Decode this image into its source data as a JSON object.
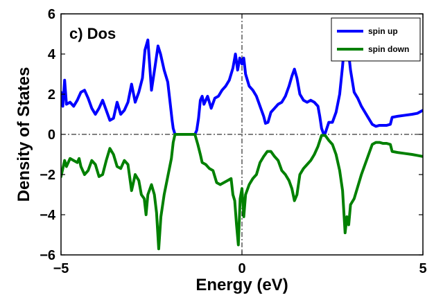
{
  "chart_data": {
    "type": "line",
    "title": "c) Dos",
    "xlabel": "Energy (eV)",
    "ylabel": "Density of States",
    "xlim": [
      -5,
      5
    ],
    "ylim": [
      -6,
      6
    ],
    "xticks": [
      -5,
      0,
      5
    ],
    "xtick_labels": [
      "−5",
      "0",
      "5"
    ],
    "yticks": [
      -6,
      -4,
      -2,
      0,
      2,
      4,
      6
    ],
    "ytick_labels": [
      "−6",
      "−4",
      "−2",
      "0",
      "2",
      "4",
      "6"
    ],
    "grid": false,
    "legend_position": "top-right",
    "reference_lines": {
      "horizontal": 0,
      "vertical": 0,
      "style": "dash-dot"
    },
    "series": [
      {
        "name": "spin up",
        "color": "#0000ff",
        "points": [
          [
            -5.0,
            2.1
          ],
          [
            -4.95,
            1.4
          ],
          [
            -4.9,
            2.7
          ],
          [
            -4.85,
            1.5
          ],
          [
            -4.75,
            1.6
          ],
          [
            -4.65,
            1.4
          ],
          [
            -4.55,
            1.7
          ],
          [
            -4.45,
            2.1
          ],
          [
            -4.35,
            2.2
          ],
          [
            -4.25,
            1.8
          ],
          [
            -4.15,
            1.3
          ],
          [
            -4.05,
            1.0
          ],
          [
            -3.95,
            1.3
          ],
          [
            -3.85,
            1.7
          ],
          [
            -3.75,
            1.2
          ],
          [
            -3.65,
            0.7
          ],
          [
            -3.55,
            0.8
          ],
          [
            -3.45,
            1.6
          ],
          [
            -3.35,
            1.0
          ],
          [
            -3.25,
            1.2
          ],
          [
            -3.15,
            1.6
          ],
          [
            -3.05,
            2.5
          ],
          [
            -2.95,
            1.6
          ],
          [
            -2.85,
            2.1
          ],
          [
            -2.75,
            2.8
          ],
          [
            -2.68,
            4.2
          ],
          [
            -2.6,
            4.7
          ],
          [
            -2.5,
            2.2
          ],
          [
            -2.4,
            3.4
          ],
          [
            -2.32,
            4.4
          ],
          [
            -2.25,
            4.0
          ],
          [
            -2.15,
            3.2
          ],
          [
            -2.05,
            2.6
          ],
          [
            -1.98,
            1.5
          ],
          [
            -1.93,
            0.7
          ],
          [
            -1.9,
            0.3
          ],
          [
            -1.85,
            0.0
          ],
          [
            -1.3,
            0.0
          ],
          [
            -1.25,
            0.2
          ],
          [
            -1.2,
            0.8
          ],
          [
            -1.15,
            1.7
          ],
          [
            -1.1,
            1.9
          ],
          [
            -1.05,
            1.5
          ],
          [
            -0.95,
            1.9
          ],
          [
            -0.85,
            1.3
          ],
          [
            -0.75,
            1.8
          ],
          [
            -0.65,
            1.9
          ],
          [
            -0.55,
            2.2
          ],
          [
            -0.45,
            2.4
          ],
          [
            -0.35,
            2.7
          ],
          [
            -0.25,
            3.3
          ],
          [
            -0.18,
            4.0
          ],
          [
            -0.12,
            3.2
          ],
          [
            -0.06,
            3.8
          ],
          [
            0.0,
            3.5
          ],
          [
            0.05,
            3.8
          ],
          [
            0.1,
            3.0
          ],
          [
            0.2,
            2.4
          ],
          [
            0.3,
            2.2
          ],
          [
            0.4,
            1.9
          ],
          [
            0.5,
            1.4
          ],
          [
            0.6,
            0.9
          ],
          [
            0.65,
            0.55
          ],
          [
            0.72,
            0.6
          ],
          [
            0.8,
            1.1
          ],
          [
            0.9,
            1.3
          ],
          [
            1.0,
            1.5
          ],
          [
            1.1,
            1.6
          ],
          [
            1.2,
            1.9
          ],
          [
            1.3,
            2.4
          ],
          [
            1.38,
            2.9
          ],
          [
            1.45,
            3.25
          ],
          [
            1.52,
            2.8
          ],
          [
            1.6,
            2.0
          ],
          [
            1.7,
            1.7
          ],
          [
            1.8,
            1.6
          ],
          [
            1.9,
            1.7
          ],
          [
            2.0,
            1.6
          ],
          [
            2.1,
            1.4
          ],
          [
            2.15,
            0.9
          ],
          [
            2.2,
            0.3
          ],
          [
            2.25,
            0.05
          ],
          [
            2.3,
            0.05
          ],
          [
            2.4,
            0.6
          ],
          [
            2.5,
            0.6
          ],
          [
            2.6,
            1.1
          ],
          [
            2.7,
            2.0
          ],
          [
            2.78,
            3.4
          ],
          [
            2.85,
            4.9
          ],
          [
            2.9,
            5.3
          ],
          [
            2.95,
            4.0
          ],
          [
            3.0,
            3.2
          ],
          [
            3.1,
            2.1
          ],
          [
            3.2,
            1.8
          ],
          [
            3.3,
            1.4
          ],
          [
            3.4,
            1.1
          ],
          [
            3.5,
            0.8
          ],
          [
            3.6,
            0.5
          ],
          [
            3.7,
            0.4
          ],
          [
            3.8,
            0.45
          ],
          [
            3.9,
            0.45
          ],
          [
            4.0,
            0.45
          ],
          [
            4.1,
            0.5
          ],
          [
            4.15,
            0.85
          ],
          [
            4.3,
            0.9
          ],
          [
            4.5,
            0.95
          ],
          [
            4.7,
            1.0
          ],
          [
            4.85,
            1.05
          ],
          [
            5.0,
            1.2
          ]
        ]
      },
      {
        "name": "spin down",
        "color": "#008000",
        "points": [
          [
            -5.0,
            -2.1
          ],
          [
            -4.95,
            -1.7
          ],
          [
            -4.9,
            -1.3
          ],
          [
            -4.85,
            -1.6
          ],
          [
            -4.75,
            -1.2
          ],
          [
            -4.65,
            -1.3
          ],
          [
            -4.55,
            -1.4
          ],
          [
            -4.5,
            -1.2
          ],
          [
            -4.45,
            -1.6
          ],
          [
            -4.35,
            -2.0
          ],
          [
            -4.25,
            -1.8
          ],
          [
            -4.15,
            -1.3
          ],
          [
            -4.05,
            -1.5
          ],
          [
            -3.95,
            -2.1
          ],
          [
            -3.85,
            -2.0
          ],
          [
            -3.75,
            -1.3
          ],
          [
            -3.65,
            -0.7
          ],
          [
            -3.55,
            -1.0
          ],
          [
            -3.45,
            -1.6
          ],
          [
            -3.35,
            -1.7
          ],
          [
            -3.25,
            -1.3
          ],
          [
            -3.15,
            -1.5
          ],
          [
            -3.05,
            -2.8
          ],
          [
            -2.95,
            -2.0
          ],
          [
            -2.85,
            -2.3
          ],
          [
            -2.78,
            -3.0
          ],
          [
            -2.7,
            -3.2
          ],
          [
            -2.65,
            -4.0
          ],
          [
            -2.6,
            -3.0
          ],
          [
            -2.5,
            -2.5
          ],
          [
            -2.42,
            -3.0
          ],
          [
            -2.36,
            -3.9
          ],
          [
            -2.3,
            -5.7
          ],
          [
            -2.24,
            -4.1
          ],
          [
            -2.15,
            -3.0
          ],
          [
            -2.05,
            -2.1
          ],
          [
            -1.95,
            -1.2
          ],
          [
            -1.9,
            -0.4
          ],
          [
            -1.85,
            0.0
          ],
          [
            -1.3,
            0.0
          ],
          [
            -1.22,
            -0.5
          ],
          [
            -1.15,
            -1.0
          ],
          [
            -1.1,
            -1.4
          ],
          [
            -1.0,
            -1.5
          ],
          [
            -0.9,
            -1.7
          ],
          [
            -0.8,
            -1.8
          ],
          [
            -0.7,
            -2.4
          ],
          [
            -0.6,
            -2.5
          ],
          [
            -0.5,
            -2.4
          ],
          [
            -0.4,
            -2.3
          ],
          [
            -0.3,
            -2.2
          ],
          [
            -0.25,
            -3.0
          ],
          [
            -0.2,
            -3.3
          ],
          [
            -0.15,
            -4.5
          ],
          [
            -0.1,
            -5.5
          ],
          [
            -0.05,
            -3.2
          ],
          [
            0.0,
            -2.7
          ],
          [
            0.05,
            -4.1
          ],
          [
            0.1,
            -3.0
          ],
          [
            0.2,
            -2.5
          ],
          [
            0.3,
            -2.2
          ],
          [
            0.4,
            -2.0
          ],
          [
            0.5,
            -1.4
          ],
          [
            0.6,
            -1.1
          ],
          [
            0.7,
            -0.85
          ],
          [
            0.8,
            -0.85
          ],
          [
            0.9,
            -1.1
          ],
          [
            1.0,
            -1.3
          ],
          [
            1.1,
            -1.8
          ],
          [
            1.2,
            -2.0
          ],
          [
            1.3,
            -2.3
          ],
          [
            1.38,
            -2.7
          ],
          [
            1.45,
            -3.3
          ],
          [
            1.52,
            -3.0
          ],
          [
            1.6,
            -2.0
          ],
          [
            1.7,
            -1.7
          ],
          [
            1.8,
            -1.5
          ],
          [
            1.9,
            -1.3
          ],
          [
            2.0,
            -1.0
          ],
          [
            2.1,
            -0.6
          ],
          [
            2.2,
            -0.05
          ],
          [
            2.3,
            -0.05
          ],
          [
            2.4,
            -0.3
          ],
          [
            2.5,
            -0.5
          ],
          [
            2.6,
            -1.0
          ],
          [
            2.7,
            -1.8
          ],
          [
            2.78,
            -2.8
          ],
          [
            2.85,
            -4.9
          ],
          [
            2.9,
            -4.1
          ],
          [
            2.95,
            -4.5
          ],
          [
            3.0,
            -3.5
          ],
          [
            3.1,
            -3.2
          ],
          [
            3.2,
            -2.6
          ],
          [
            3.3,
            -2.0
          ],
          [
            3.4,
            -1.5
          ],
          [
            3.5,
            -1.0
          ],
          [
            3.6,
            -0.5
          ],
          [
            3.7,
            -0.4
          ],
          [
            3.8,
            -0.4
          ],
          [
            3.9,
            -0.45
          ],
          [
            4.0,
            -0.45
          ],
          [
            4.1,
            -0.5
          ],
          [
            4.15,
            -0.85
          ],
          [
            4.3,
            -0.9
          ],
          [
            4.5,
            -0.95
          ],
          [
            4.7,
            -1.0
          ],
          [
            4.85,
            -1.05
          ],
          [
            5.0,
            -1.1
          ]
        ]
      }
    ]
  }
}
